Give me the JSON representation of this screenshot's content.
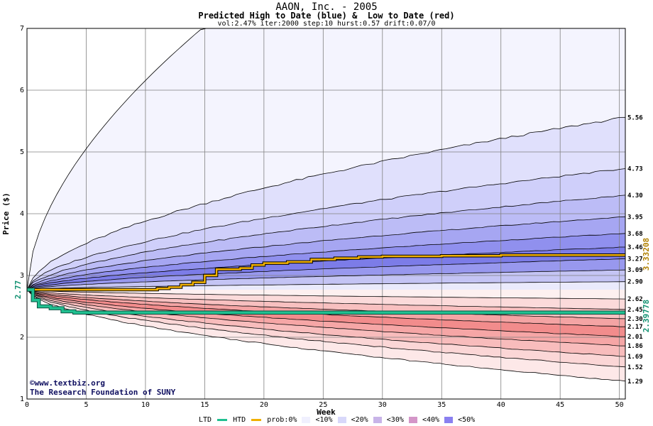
{
  "title": "AAON, Inc. - 2005",
  "subtitle": "Predicted High to Date (blue) &  Low to Date (red)",
  "params": "vol:2.47% iter:2000 step:10 hurst:0.57 drift:0.07/0",
  "credit_line1": "www.textbiz.org",
  "credit_copyright": "©",
  "credit_line2": "The Research Foundation of SUNY",
  "colors": {
    "htd_line": "#f0b000",
    "ltd_line": "#20c090",
    "htd_value_text": "#b08000",
    "ltd_value_text": "#109070",
    "grid": "#808080"
  },
  "legend": {
    "ltd": "LTD",
    "htd": "HTD",
    "prob": "prob:0%",
    "b10": "<10%",
    "b20": "<20%",
    "b30": "<30%",
    "b40": "<40%",
    "b50": "<50%"
  },
  "chart_data": {
    "type": "area",
    "xlabel": "Week",
    "ylabel": "Price ($)",
    "xlim": [
      0,
      50.5
    ],
    "ylim": [
      1,
      7
    ],
    "xticks": [
      0,
      5,
      10,
      15,
      20,
      25,
      30,
      35,
      40,
      45,
      50
    ],
    "yticks": [
      1,
      2,
      3,
      4,
      5,
      6,
      7
    ],
    "start_price": "2.77",
    "htd_final": "3.33208",
    "ltd_final": "2.39778",
    "upper_bands": [
      {
        "end": 7.0,
        "fill": "#f4f4fe"
      },
      {
        "end": 5.56,
        "fill": "#e0e0fc",
        "label": "5.56"
      },
      {
        "end": 4.73,
        "fill": "#cfcffa",
        "label": "4.73"
      },
      {
        "end": 4.3,
        "fill": "#bcbcf6",
        "label": "4.30"
      },
      {
        "end": 3.95,
        "fill": "#a6a6f2",
        "label": "3.95"
      },
      {
        "end": 3.68,
        "fill": "#9090ee",
        "label": "3.68"
      },
      {
        "end": 3.46,
        "fill": "#7c7ce8",
        "label": "3.46"
      },
      {
        "end": 3.27,
        "fill": "#9898ee",
        "label": "3.27"
      },
      {
        "end": 3.09,
        "fill": "#c4c4f4",
        "label": "3.09"
      },
      {
        "end": 2.9,
        "fill": "#eaeafc",
        "label": "2.90"
      }
    ],
    "lower_bands": [
      {
        "end": 2.62,
        "fill": "#fdf0f0",
        "label": "2.62"
      },
      {
        "end": 2.45,
        "fill": "#fbdada",
        "label": "2.45"
      },
      {
        "end": 2.3,
        "fill": "#f8c0c0",
        "label": "2.30"
      },
      {
        "end": 2.17,
        "fill": "#f4a4a4",
        "label": "2.17"
      },
      {
        "end": 2.01,
        "fill": "#f28c8c",
        "label": "2.01"
      },
      {
        "end": 1.86,
        "fill": "#f6a6a6",
        "label": "1.86"
      },
      {
        "end": 1.69,
        "fill": "#f8bcbc",
        "label": "1.69"
      },
      {
        "end": 1.52,
        "fill": "#fbd6d6",
        "label": "1.52"
      },
      {
        "end": 1.29,
        "fill": "#fde8e8",
        "label": "1.29"
      }
    ],
    "band_floor": 1.0,
    "htd_path": [
      [
        0,
        2.77
      ],
      [
        1,
        2.77
      ],
      [
        6,
        2.77
      ],
      [
        10,
        2.77
      ],
      [
        11,
        2.79
      ],
      [
        12,
        2.81
      ],
      [
        13,
        2.85
      ],
      [
        14,
        2.89
      ],
      [
        15,
        3.0
      ],
      [
        16,
        3.1
      ],
      [
        18,
        3.12
      ],
      [
        19,
        3.17
      ],
      [
        20,
        3.2
      ],
      [
        22,
        3.22
      ],
      [
        24,
        3.26
      ],
      [
        26,
        3.28
      ],
      [
        28,
        3.3
      ],
      [
        30,
        3.31
      ],
      [
        35,
        3.32
      ],
      [
        40,
        3.33
      ],
      [
        45,
        3.33
      ],
      [
        50.5,
        3.33
      ]
    ],
    "ltd_path": [
      [
        0,
        2.77
      ],
      [
        0.5,
        2.6
      ],
      [
        1,
        2.5
      ],
      [
        2,
        2.47
      ],
      [
        3,
        2.42
      ],
      [
        4,
        2.4
      ],
      [
        10,
        2.4
      ],
      [
        20,
        2.4
      ],
      [
        30,
        2.4
      ],
      [
        40,
        2.4
      ],
      [
        50.5,
        2.4
      ]
    ]
  }
}
